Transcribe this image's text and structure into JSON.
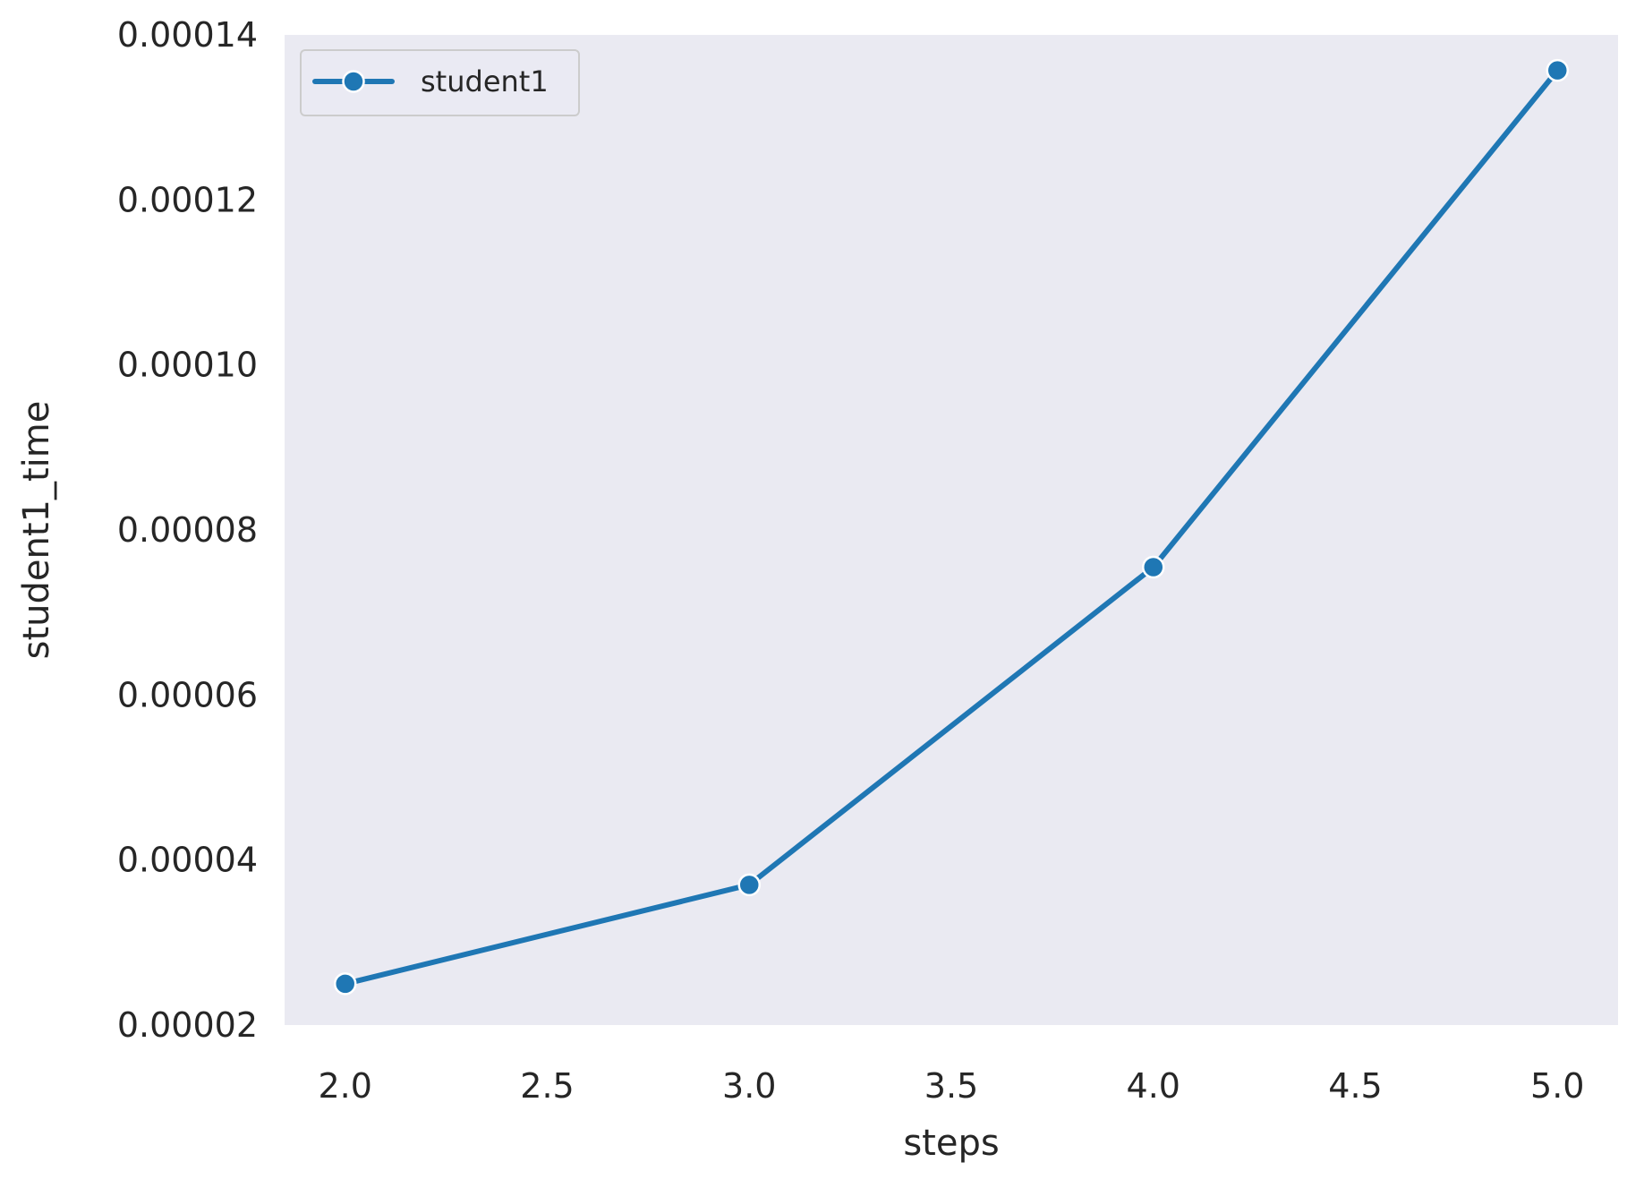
{
  "chart_data": {
    "type": "line",
    "title": "",
    "xlabel": "steps",
    "ylabel": "student1_time",
    "x": [
      2.0,
      3.0,
      4.0,
      5.0
    ],
    "series": [
      {
        "name": "student1",
        "values": [
          2.5e-05,
          3.7e-05,
          7.55e-05,
          0.0001357
        ],
        "color": "#1f77b4",
        "marker": "circle"
      }
    ],
    "xlim": [
      1.85,
      5.15
    ],
    "ylim": [
      2e-05,
      0.00014
    ],
    "xticks": [
      2.0,
      2.5,
      3.0,
      3.5,
      4.0,
      4.5,
      5.0
    ],
    "xtick_labels": [
      "2.0",
      "2.5",
      "3.0",
      "3.5",
      "4.0",
      "4.5",
      "5.0"
    ],
    "yticks": [
      2e-05,
      4e-05,
      6e-05,
      8e-05,
      0.0001,
      0.00012,
      0.00014
    ],
    "ytick_labels": [
      "0.00002",
      "0.00004",
      "0.00006",
      "0.00008",
      "0.00010",
      "0.00012",
      "0.00014"
    ],
    "grid": false,
    "legend_position": "top-left",
    "background_color": "#eaeaf2"
  }
}
